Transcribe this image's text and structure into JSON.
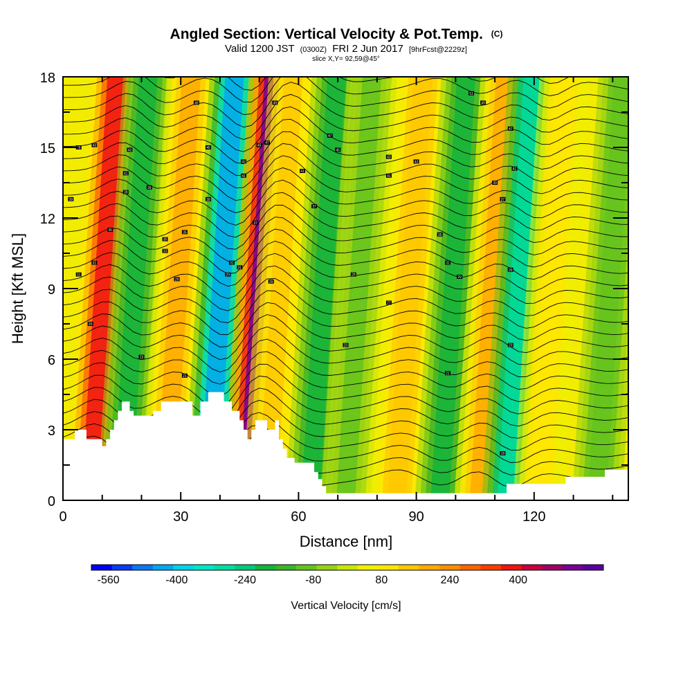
{
  "chart_data": {
    "type": "heatmap",
    "title": "Angled Section: Vertical Velocity & Pot.Temp.",
    "title_mark": "(C)",
    "subtitle_parts": [
      "Valid 1200 JST",
      "(0300Z)",
      "FRI 2 Jun 2017",
      "[9hrFcst@2229z]"
    ],
    "slice_label": "slice X,Y= 92,59@45°",
    "xlabel": "Distance [nm]",
    "ylabel": "Height [Kft MSL]",
    "xlim": [
      0,
      144
    ],
    "ylim": [
      0,
      18
    ],
    "x_ticks": [
      0,
      30,
      60,
      90,
      120
    ],
    "y_ticks": [
      0,
      3,
      6,
      9,
      12,
      15,
      18
    ],
    "colorbar": {
      "label": "Vertical Velocity [cm/s]",
      "tick_labels": [
        -560,
        -400,
        -240,
        -80,
        80,
        240,
        400
      ],
      "range": [
        -600,
        600
      ],
      "colors": [
        "#0000f0",
        "#0a3cf5",
        "#0a78f0",
        "#00a8f0",
        "#00d2e6",
        "#00e6c8",
        "#00dca0",
        "#00c878",
        "#14b43c",
        "#3cb428",
        "#64c31e",
        "#96d214",
        "#c8e60a",
        "#f0f000",
        "#ffe600",
        "#ffc800",
        "#ffaa00",
        "#ff8c00",
        "#ff6400",
        "#ff3c00",
        "#f01414",
        "#c8003c",
        "#a00064",
        "#780096",
        "#5a00a0"
      ]
    },
    "vertical_velocity_bands": [
      {
        "x": 7,
        "value": 380
      },
      {
        "x": 15,
        "value": -180
      },
      {
        "x": 26,
        "value": 180
      },
      {
        "x": 37,
        "value": -420
      },
      {
        "x": 47,
        "value": 520
      },
      {
        "x": 52,
        "value": 150
      },
      {
        "x": 63,
        "value": -180
      },
      {
        "x": 72,
        "value": -80
      },
      {
        "x": 85,
        "value": 160
      },
      {
        "x": 96,
        "value": -200
      },
      {
        "x": 106,
        "value": 200
      },
      {
        "x": 113,
        "value": -300
      },
      {
        "x": 121,
        "value": 100
      },
      {
        "x": 136,
        "value": -100
      }
    ],
    "terrain_top_kft": [
      [
        0,
        2.6
      ],
      [
        3,
        2.6
      ],
      [
        3,
        3.0
      ],
      [
        6,
        3.0
      ],
      [
        6,
        2.6
      ],
      [
        10,
        2.6
      ],
      [
        10,
        2.3
      ],
      [
        11,
        2.3
      ],
      [
        11,
        2.6
      ],
      [
        12,
        2.6
      ],
      [
        12,
        3.0
      ],
      [
        13,
        3.0
      ],
      [
        13,
        3.4
      ],
      [
        14,
        3.4
      ],
      [
        14,
        3.8
      ],
      [
        15,
        3.8
      ],
      [
        15,
        4.2
      ],
      [
        17,
        4.2
      ],
      [
        17,
        3.8
      ],
      [
        18,
        3.8
      ],
      [
        18,
        3.6
      ],
      [
        23,
        3.6
      ],
      [
        23,
        3.8
      ],
      [
        25,
        3.8
      ],
      [
        25,
        4.2
      ],
      [
        33,
        4.2
      ],
      [
        33,
        3.6
      ],
      [
        35,
        3.6
      ],
      [
        35,
        4.2
      ],
      [
        37,
        4.2
      ],
      [
        37,
        4.6
      ],
      [
        41,
        4.6
      ],
      [
        41,
        4.2
      ],
      [
        43,
        4.2
      ],
      [
        43,
        3.8
      ],
      [
        45,
        3.8
      ],
      [
        45,
        3.4
      ],
      [
        46,
        3.4
      ],
      [
        46,
        3.0
      ],
      [
        47,
        3.0
      ],
      [
        47,
        2.6
      ],
      [
        48,
        2.6
      ],
      [
        48,
        3.0
      ],
      [
        49,
        3.0
      ],
      [
        49,
        3.4
      ],
      [
        52,
        3.4
      ],
      [
        52,
        3.0
      ],
      [
        54,
        3.0
      ],
      [
        54,
        3.4
      ],
      [
        55,
        3.4
      ],
      [
        55,
        2.6
      ],
      [
        56,
        2.6
      ],
      [
        56,
        2.2
      ],
      [
        57,
        2.2
      ],
      [
        57,
        1.8
      ],
      [
        59,
        1.8
      ],
      [
        59,
        1.6
      ],
      [
        64,
        1.6
      ],
      [
        64,
        1.2
      ],
      [
        65,
        1.2
      ],
      [
        65,
        0.9
      ],
      [
        66,
        0.9
      ],
      [
        66,
        0.6
      ],
      [
        67,
        0.6
      ],
      [
        67,
        0.3
      ],
      [
        113,
        0.3
      ],
      [
        113,
        0.7
      ],
      [
        128,
        0.7
      ],
      [
        128,
        1.0
      ],
      [
        138,
        1.0
      ],
      [
        138,
        1.3
      ],
      [
        144,
        1.3
      ]
    ],
    "contour_labels": [
      {
        "x": 4,
        "y": 15.0,
        "text": "45"
      },
      {
        "x": 8,
        "y": 15.1,
        "text": "43"
      },
      {
        "x": 2,
        "y": 12.8,
        "text": "39"
      },
      {
        "x": 4,
        "y": 9.6,
        "text": "31"
      },
      {
        "x": 8,
        "y": 10.1,
        "text": "31"
      },
      {
        "x": 7,
        "y": 7.5,
        "text": "25"
      },
      {
        "x": 17,
        "y": 14.9,
        "text": "43"
      },
      {
        "x": 16,
        "y": 13.9,
        "text": "41"
      },
      {
        "x": 16,
        "y": 13.1,
        "text": "39"
      },
      {
        "x": 12,
        "y": 11.5,
        "text": "35"
      },
      {
        "x": 22,
        "y": 13.3,
        "text": "39"
      },
      {
        "x": 26,
        "y": 11.1,
        "text": "35"
      },
      {
        "x": 26,
        "y": 10.6,
        "text": "33"
      },
      {
        "x": 31,
        "y": 11.4,
        "text": "35"
      },
      {
        "x": 29,
        "y": 9.4,
        "text": "29"
      },
      {
        "x": 20,
        "y": 6.1,
        "text": "23"
      },
      {
        "x": 31,
        "y": 5.3,
        "text": "21"
      },
      {
        "x": 34,
        "y": 16.9,
        "text": "49"
      },
      {
        "x": 37,
        "y": 15.0,
        "text": "45"
      },
      {
        "x": 37,
        "y": 12.8,
        "text": "39"
      },
      {
        "x": 43,
        "y": 10.1,
        "text": "31"
      },
      {
        "x": 42,
        "y": 9.6,
        "text": "29"
      },
      {
        "x": 45,
        "y": 9.9,
        "text": "31"
      },
      {
        "x": 46,
        "y": 14.4,
        "text": "43"
      },
      {
        "x": 46,
        "y": 13.8,
        "text": "41"
      },
      {
        "x": 50,
        "y": 15.1,
        "text": "45"
      },
      {
        "x": 52,
        "y": 15.2,
        "text": "47"
      },
      {
        "x": 49,
        "y": 11.8,
        "text": "37"
      },
      {
        "x": 53,
        "y": 9.3,
        "text": "29"
      },
      {
        "x": 54,
        "y": 16.9,
        "text": "49"
      },
      {
        "x": 61,
        "y": 14.0,
        "text": "41"
      },
      {
        "x": 64,
        "y": 12.5,
        "text": "37"
      },
      {
        "x": 68,
        "y": 15.5,
        "text": "47"
      },
      {
        "x": 70,
        "y": 14.9,
        "text": "45"
      },
      {
        "x": 74,
        "y": 9.6,
        "text": "29"
      },
      {
        "x": 72,
        "y": 6.6,
        "text": "23"
      },
      {
        "x": 83,
        "y": 14.6,
        "text": "43"
      },
      {
        "x": 83,
        "y": 13.8,
        "text": "41"
      },
      {
        "x": 83,
        "y": 8.4,
        "text": "27"
      },
      {
        "x": 90,
        "y": 14.4,
        "text": "43"
      },
      {
        "x": 96,
        "y": 11.3,
        "text": "35"
      },
      {
        "x": 98,
        "y": 10.1,
        "text": "31"
      },
      {
        "x": 101,
        "y": 9.5,
        "text": "29"
      },
      {
        "x": 98,
        "y": 5.4,
        "text": "21"
      },
      {
        "x": 104,
        "y": 17.3,
        "text": "51"
      },
      {
        "x": 107,
        "y": 16.9,
        "text": "49"
      },
      {
        "x": 110,
        "y": 13.5,
        "text": "39"
      },
      {
        "x": 112,
        "y": 12.8,
        "text": "37"
      },
      {
        "x": 114,
        "y": 15.8,
        "text": "47"
      },
      {
        "x": 115,
        "y": 14.1,
        "text": "41"
      },
      {
        "x": 114,
        "y": 9.8,
        "text": "29"
      },
      {
        "x": 114,
        "y": 6.6,
        "text": "23"
      },
      {
        "x": 112,
        "y": 2.0,
        "text": "19"
      }
    ],
    "grid": false
  }
}
